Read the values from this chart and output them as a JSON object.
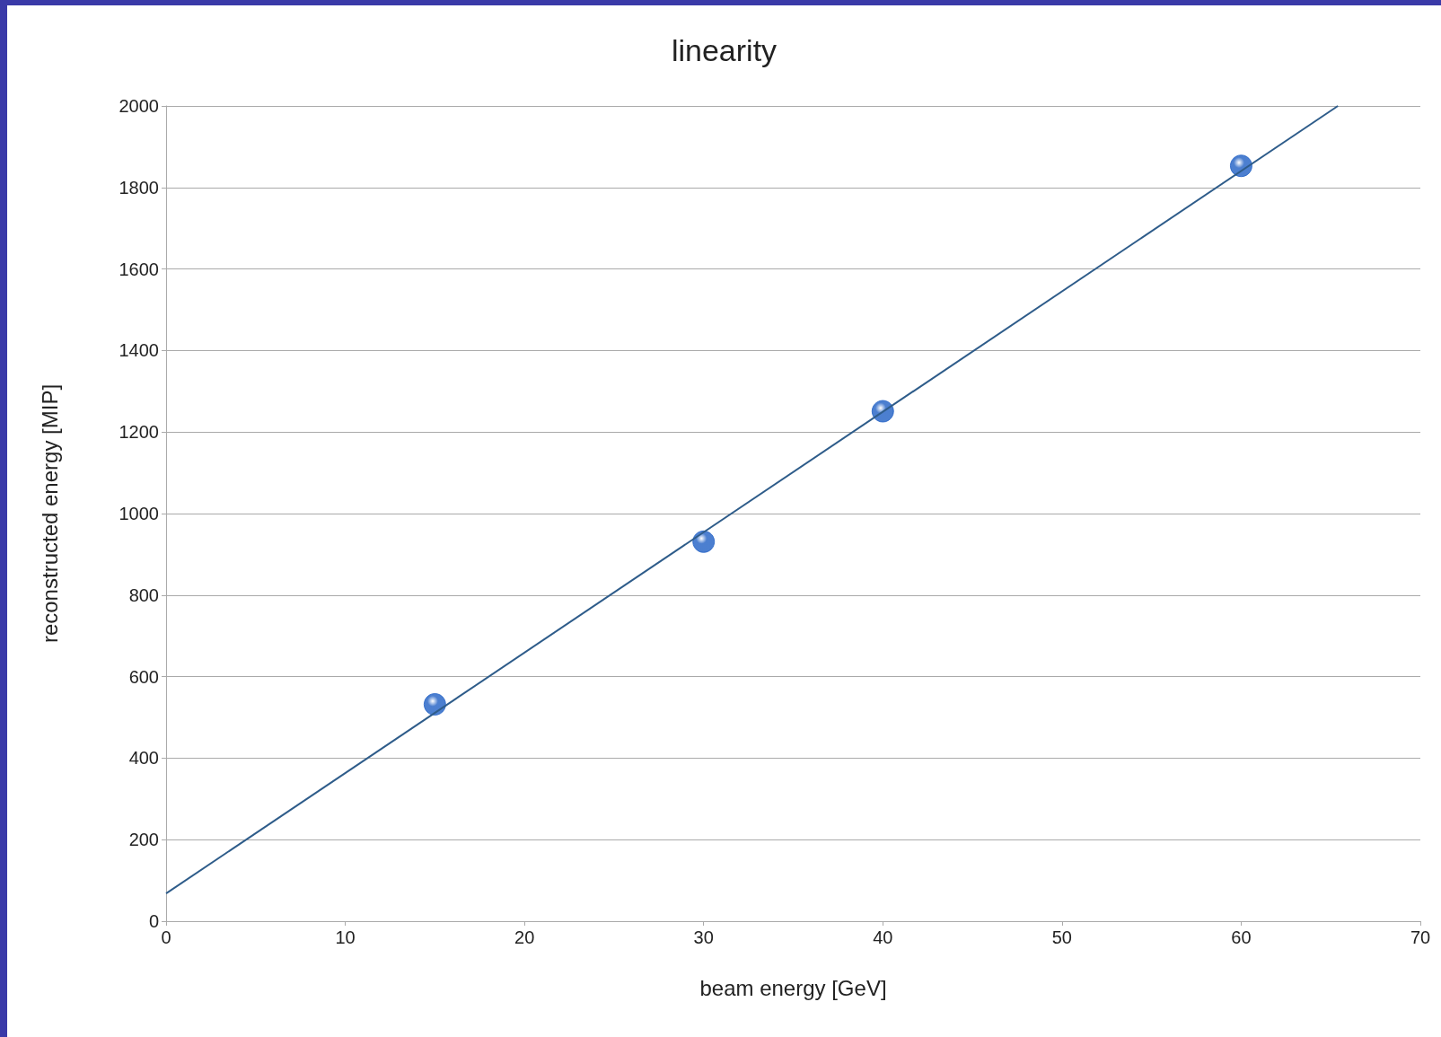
{
  "chart_data": {
    "type": "scatter",
    "title": "linearity",
    "xlabel": "beam energy [GeV]",
    "ylabel": "reconstructed energy [MIP]",
    "xlim": [
      0,
      70
    ],
    "xticks": [
      0,
      10,
      20,
      30,
      40,
      50,
      60,
      70
    ],
    "ylim": [
      0,
      2000
    ],
    "yticks": [
      0,
      200,
      400,
      600,
      800,
      1000,
      1200,
      1400,
      1600,
      1800,
      2000
    ],
    "grid": "y",
    "series": [
      {
        "marker": "circle",
        "color": "#1f5fc4",
        "x": [
          15,
          30,
          40,
          60
        ],
        "values": [
          532,
          931,
          1251,
          1853
        ]
      },
      {
        "type": "line",
        "marker": "none",
        "color": "#2e5c8a",
        "x": [
          0,
          65.4
        ],
        "values": [
          68,
          2000
        ]
      }
    ]
  }
}
